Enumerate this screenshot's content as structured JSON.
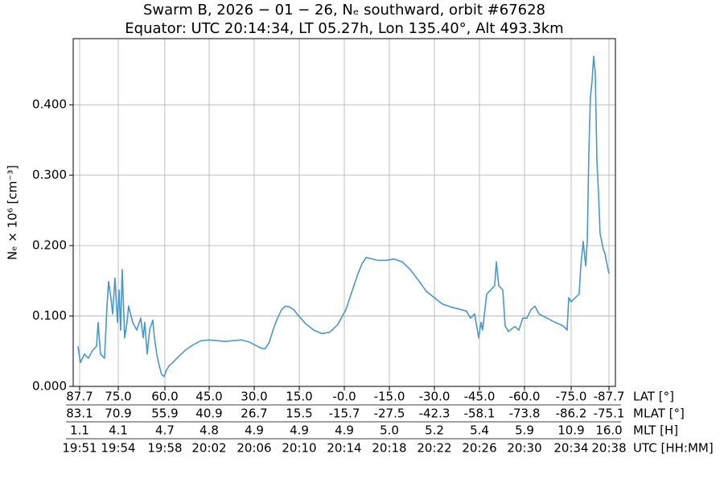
{
  "chart_data": {
    "type": "line",
    "title": "Swarm B,  2026 − 01 − 26,  Nₑ southward,  orbit #67628",
    "subtitle": "Equator:  UTC 20:14:34,  LT 05.27h,  Lon 135.40°,  Alt 493.3km",
    "y_label": "Nₑ × 10⁶ [cm⁻³]",
    "x_label": "UTC [HH:MM]",
    "grid": true,
    "xlim": [
      1190.5,
      1238.64
    ],
    "ylim": [
      0,
      0.494
    ],
    "yticks": [
      {
        "value": 0,
        "label": "0.000"
      },
      {
        "value": 0.1,
        "label": "0.100"
      },
      {
        "value": 0.2,
        "label": "0.200"
      },
      {
        "value": 0.3,
        "label": "0.300"
      },
      {
        "value": 0.4,
        "label": "0.400"
      }
    ],
    "xticks": [
      {
        "value": 1191.07,
        "label": "19:51"
      },
      {
        "value": 1194.5,
        "label": "19:54"
      },
      {
        "value": 1198.64,
        "label": "19:58"
      },
      {
        "value": 1202.57,
        "label": "20:02"
      },
      {
        "value": 1206.57,
        "label": "20:06"
      },
      {
        "value": 1210.57,
        "label": "20:10"
      },
      {
        "value": 1214.57,
        "label": "20:14"
      },
      {
        "value": 1218.57,
        "label": "20:18"
      },
      {
        "value": 1222.57,
        "label": "20:22"
      },
      {
        "value": 1226.57,
        "label": "20:26"
      },
      {
        "value": 1230.57,
        "label": "20:30"
      },
      {
        "value": 1234.71,
        "label": "20:34"
      },
      {
        "value": 1238.07,
        "label": "20:38"
      }
    ],
    "xtick_rows": [
      {
        "name": "LAT [°]",
        "labels": [
          "87.7",
          "75.0",
          "60.0",
          "45.0",
          "30.0",
          "15.0",
          "-0.0",
          "-15.0",
          "-30.0",
          "-45.0",
          "-60.0",
          "-75.0",
          "-87.7"
        ]
      },
      {
        "name": "MLAT [°]",
        "labels": [
          "83.1",
          "70.9",
          "55.9",
          "40.9",
          "26.7",
          "15.5",
          "-15.7",
          "-27.5",
          "-42.3",
          "-58.1",
          "-73.8",
          "-86.2",
          "-75.1"
        ]
      },
      {
        "name": "MLT [H]",
        "labels": [
          "1.1",
          "4.1",
          "4.7",
          "4.8",
          "4.9",
          "4.9",
          "4.9",
          "5.0",
          "5.2",
          "5.4",
          "5.9",
          "10.9",
          "16.0"
        ]
      }
    ],
    "series": [
      {
        "color": "#4a98c9",
        "x": [
          1190.92,
          1191.14,
          1191.5,
          1191.85,
          1192.21,
          1192.57,
          1192.71,
          1192.92,
          1193.28,
          1193.5,
          1193.64,
          1193.85,
          1194.0,
          1194.21,
          1194.43,
          1194.57,
          1194.71,
          1194.85,
          1195.07,
          1195.28,
          1195.42,
          1195.78,
          1196.14,
          1196.5,
          1196.71,
          1196.85,
          1197.07,
          1197.28,
          1197.57,
          1197.71,
          1197.92,
          1198.14,
          1198.35,
          1198.57,
          1198.78,
          1199.0,
          1199.35,
          1199.71,
          1200.42,
          1201.14,
          1201.85,
          1202.57,
          1203.28,
          1204.0,
          1204.71,
          1205.42,
          1206.14,
          1206.85,
          1207.21,
          1207.57,
          1207.92,
          1208.28,
          1208.64,
          1209.0,
          1209.35,
          1209.71,
          1210.07,
          1210.42,
          1211.14,
          1211.85,
          1212.57,
          1213.28,
          1214.0,
          1214.71,
          1215.42,
          1215.78,
          1216.14,
          1216.5,
          1216.85,
          1217.57,
          1218.28,
          1219.0,
          1219.71,
          1220.42,
          1221.14,
          1221.85,
          1222.57,
          1223.28,
          1224.0,
          1224.71,
          1225.42,
          1225.78,
          1226.14,
          1226.5,
          1226.71,
          1226.85,
          1227.21,
          1227.57,
          1227.92,
          1228.07,
          1228.28,
          1228.64,
          1228.85,
          1229.14,
          1229.71,
          1230.07,
          1230.42,
          1230.78,
          1231.14,
          1231.5,
          1231.85,
          1232.57,
          1233.28,
          1234.0,
          1234.35,
          1234.5,
          1234.71,
          1235.07,
          1235.42,
          1235.57,
          1235.78,
          1236.0,
          1236.14,
          1236.28,
          1236.42,
          1236.57,
          1236.71,
          1236.85,
          1237.0,
          1237.14,
          1237.28,
          1237.42,
          1237.57,
          1237.71,
          1237.85,
          1238.07
        ],
        "values": [
          0.057,
          0.034,
          0.046,
          0.04,
          0.051,
          0.057,
          0.091,
          0.046,
          0.04,
          0.114,
          0.149,
          0.126,
          0.103,
          0.154,
          0.091,
          0.137,
          0.08,
          0.166,
          0.069,
          0.091,
          0.114,
          0.091,
          0.08,
          0.097,
          0.069,
          0.091,
          0.046,
          0.08,
          0.094,
          0.069,
          0.046,
          0.029,
          0.017,
          0.014,
          0.023,
          0.029,
          0.034,
          0.04,
          0.051,
          0.059,
          0.065,
          0.066,
          0.065,
          0.064,
          0.065,
          0.066,
          0.063,
          0.057,
          0.054,
          0.054,
          0.063,
          0.082,
          0.097,
          0.109,
          0.114,
          0.113,
          0.109,
          0.102,
          0.089,
          0.08,
          0.075,
          0.077,
          0.088,
          0.109,
          0.143,
          0.16,
          0.174,
          0.183,
          0.182,
          0.179,
          0.179,
          0.181,
          0.177,
          0.166,
          0.151,
          0.135,
          0.126,
          0.117,
          0.113,
          0.11,
          0.107,
          0.097,
          0.103,
          0.069,
          0.091,
          0.08,
          0.131,
          0.137,
          0.143,
          0.177,
          0.143,
          0.137,
          0.086,
          0.078,
          0.085,
          0.08,
          0.097,
          0.097,
          0.109,
          0.114,
          0.103,
          0.097,
          0.091,
          0.086,
          0.08,
          0.126,
          0.12,
          0.126,
          0.131,
          0.171,
          0.206,
          0.171,
          0.206,
          0.331,
          0.411,
          0.434,
          0.469,
          0.446,
          0.32,
          0.274,
          0.217,
          0.206,
          0.194,
          0.189,
          0.177,
          0.16
        ]
      }
    ]
  }
}
